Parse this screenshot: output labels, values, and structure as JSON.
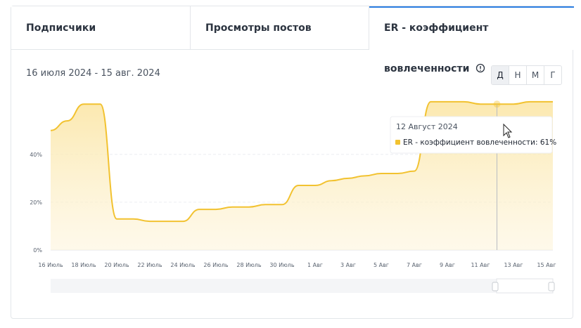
{
  "tabs": [
    "Подписчики",
    "Просмотры постов",
    "ER - коэффициент вовлеченности"
  ],
  "date_range": "16 июля 2024 - 15 авг. 2024",
  "periods": [
    "Д",
    "Н",
    "М",
    "Г"
  ],
  "tooltip": {
    "date": "12 Август 2024",
    "text": "ER - коэффициент вовлеченности: 61%"
  },
  "chart_data": {
    "type": "area",
    "categories": [
      "16 Июль",
      null,
      "18 Июль",
      null,
      "20 Июль",
      null,
      "22 Июль",
      null,
      "24 Июль",
      null,
      "26 Июль",
      null,
      "28 Июль",
      null,
      "30 Июль",
      null,
      "1 Авг",
      null,
      "3 Авг",
      null,
      "5 Авг",
      null,
      "7 Авг",
      null,
      "9 Авг",
      null,
      "11 Авг",
      null,
      "13 Авг",
      null,
      "15 Авг"
    ],
    "series": [
      {
        "name": "ER - коэффициент вовлеченности",
        "color": "#f2c230",
        "values": [
          50,
          54,
          61,
          61,
          13,
          13,
          12,
          12,
          12,
          17,
          17,
          18,
          18,
          19,
          19,
          27,
          27,
          29,
          30,
          31,
          32,
          32,
          33,
          62,
          62,
          62,
          61,
          61,
          61,
          62,
          62
        ]
      }
    ],
    "ylim": [
      0,
      64
    ],
    "yticks": [
      {
        "value": 0,
        "label": "0%"
      },
      {
        "value": 20,
        "label": "20%"
      },
      {
        "value": 40,
        "label": "40%"
      }
    ],
    "grid": true
  }
}
